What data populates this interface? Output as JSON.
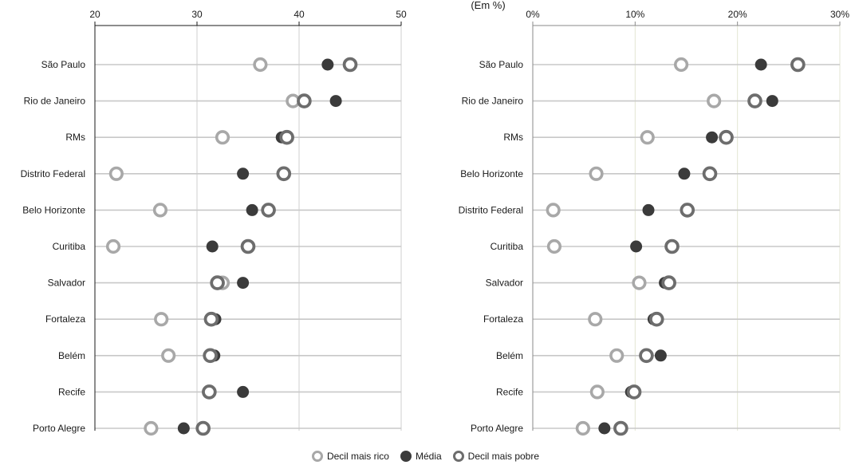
{
  "chart_data": [
    {
      "type": "scatter",
      "title": "",
      "unit_label": "",
      "xlim": [
        20,
        50
      ],
      "xticks": [
        20,
        30,
        40,
        50
      ],
      "tick_labels": [
        "20",
        "30",
        "40",
        "50"
      ],
      "categories": [
        "São Paulo",
        "Rio de Janeiro",
        "RMs",
        "Distrito Federal",
        "Belo Horizonte",
        "Curitiba",
        "Salvador",
        "Fortaleza",
        "Belém",
        "Recife",
        "Porto Alegre"
      ],
      "series": [
        {
          "name": "Decil mais rico",
          "values": [
            36.2,
            39.4,
            32.5,
            22.1,
            26.4,
            21.8,
            32.5,
            26.5,
            27.2,
            31.2,
            25.5
          ]
        },
        {
          "name": "Média",
          "values": [
            42.8,
            43.6,
            38.3,
            34.5,
            35.4,
            31.5,
            34.5,
            31.8,
            31.7,
            34.5,
            28.7
          ]
        },
        {
          "name": "Decil mais pobre",
          "values": [
            45.0,
            40.5,
            38.8,
            38.5,
            37.0,
            35.0,
            32.0,
            31.4,
            31.3,
            31.2,
            30.6
          ]
        }
      ]
    },
    {
      "type": "scatter",
      "title": "",
      "unit_label": "(Em %)",
      "xlim": [
        0,
        30
      ],
      "xticks": [
        0,
        10,
        20,
        30
      ],
      "tick_labels": [
        "0%",
        "10%",
        "20%",
        "30%"
      ],
      "categories": [
        "São Paulo",
        "Rio de Janeiro",
        "RMs",
        "Belo Horizonte",
        "Distrito Federal",
        "Curitiba",
        "Salvador",
        "Fortaleza",
        "Belém",
        "Recife",
        "Porto Alegre"
      ],
      "series": [
        {
          "name": "Decil mais rico",
          "values": [
            14.5,
            17.7,
            11.2,
            6.2,
            2.0,
            2.1,
            10.4,
            6.1,
            8.2,
            6.3,
            4.9
          ]
        },
        {
          "name": "Média",
          "values": [
            22.3,
            23.4,
            17.5,
            14.8,
            11.3,
            10.1,
            12.9,
            11.8,
            12.5,
            9.6,
            7.0
          ]
        },
        {
          "name": "Decil mais pobre",
          "values": [
            25.9,
            21.7,
            18.9,
            17.3,
            15.1,
            13.6,
            13.3,
            12.1,
            11.1,
            9.9,
            8.6
          ]
        }
      ]
    }
  ],
  "legend": [
    {
      "label": "Decil mais rico"
    },
    {
      "label": "Média"
    },
    {
      "label": "Decil mais pobre"
    }
  ],
  "colors": {
    "rico": "#a8a8a8",
    "media": "#3b3b3b",
    "pobre": "#6d6d6d",
    "axis_left": "#1a1a1a",
    "axis_right": "#8a8a8a",
    "row_line": "#c8c8c8",
    "grid_left": "#cfcfcf",
    "grid_right": "#e3e6d3"
  }
}
